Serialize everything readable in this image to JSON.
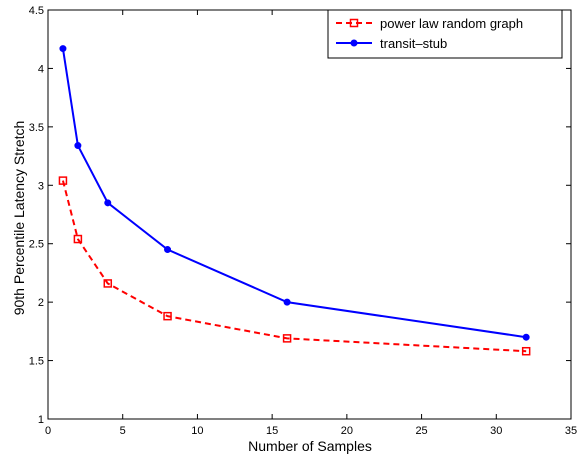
{
  "chart_data": {
    "type": "line",
    "xlabel": "Number of Samples",
    "ylabel": "90th Percentile Latency Stretch",
    "xlim": [
      0,
      35
    ],
    "ylim": [
      1,
      4.5
    ],
    "xticks": [
      0,
      5,
      10,
      15,
      20,
      25,
      30,
      35
    ],
    "yticks": [
      1,
      1.5,
      2,
      2.5,
      3,
      3.5,
      4,
      4.5
    ],
    "xtick_labels": [
      "0",
      "5",
      "10",
      "15",
      "20",
      "25",
      "30",
      "35"
    ],
    "ytick_labels": [
      "1",
      "1.5",
      "2",
      "2.5",
      "3",
      "3.5",
      "4",
      "4.5"
    ],
    "grid": false,
    "legend_position": "top-right",
    "series": [
      {
        "name": "power law random graph",
        "color": "#ff0000",
        "line_style": "dashed",
        "marker": "square",
        "x": [
          1,
          2,
          4,
          8,
          16,
          32
        ],
        "y": [
          3.04,
          2.54,
          2.16,
          1.88,
          1.69,
          1.58
        ]
      },
      {
        "name": "transit–stub",
        "color": "#0000ff",
        "line_style": "solid",
        "marker": "circle",
        "x": [
          1,
          2,
          4,
          8,
          16,
          32
        ],
        "y": [
          4.17,
          3.34,
          2.85,
          2.45,
          2.0,
          1.7
        ]
      }
    ]
  }
}
